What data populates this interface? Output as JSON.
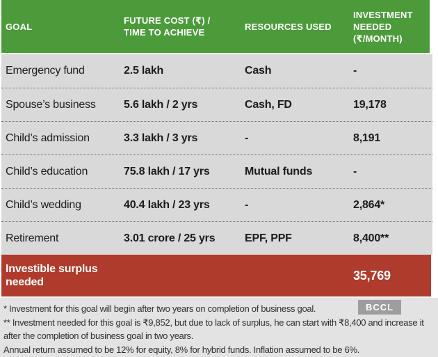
{
  "chart_data": {
    "type": "table",
    "title": "",
    "columns": [
      "GOAL",
      "FUTURE COST (₹) / TIME TO ACHIEVE",
      "RESOURCES USED",
      "INVESTMENT NEEDED (₹/MONTH)"
    ],
    "rows": [
      [
        "Emergency fund",
        "2.5 lakh",
        "Cash",
        "-"
      ],
      [
        "Spouse’s business",
        "5.6 lakh / 2 yrs",
        "Cash, FD",
        "19,178"
      ],
      [
        "Child’s admission",
        "3.3 lakh / 3 yrs",
        "-",
        "8,191"
      ],
      [
        "Child’s education",
        "75.8 lakh / 17 yrs",
        "Mutual funds",
        "-"
      ],
      [
        "Child’s wedding",
        "40.4 lakh / 23 yrs",
        "-",
        "2,864*"
      ],
      [
        "Retirement",
        "3.01 crore / 25 yrs",
        "EPF, PPF",
        "8,400**"
      ]
    ],
    "summary_row": {
      "label": "Investible surplus needed",
      "value": "35,769"
    }
  },
  "notes": [
    "* Investment for this goal will begin after two years on completion of business goal.",
    "** Investment needed for this goal is ₹9,852, but due to lack of surplus, he can start with ₹8,400 and increase it after the completion of business goal in two years.",
    "Annual return assumed to be 12% for equity, 8% for hybrid funds. Inflation assumed to be 6%."
  ],
  "watermark": "BCCL",
  "colors": {
    "header_green": "#4c9b3a",
    "summary_red": "#ae3b2b",
    "row_gray": "#d9d9d9",
    "footnote_gray": "#e3e3e3",
    "badge_gray": "#9e9e9e",
    "text_dark": "#1b1b1b"
  }
}
